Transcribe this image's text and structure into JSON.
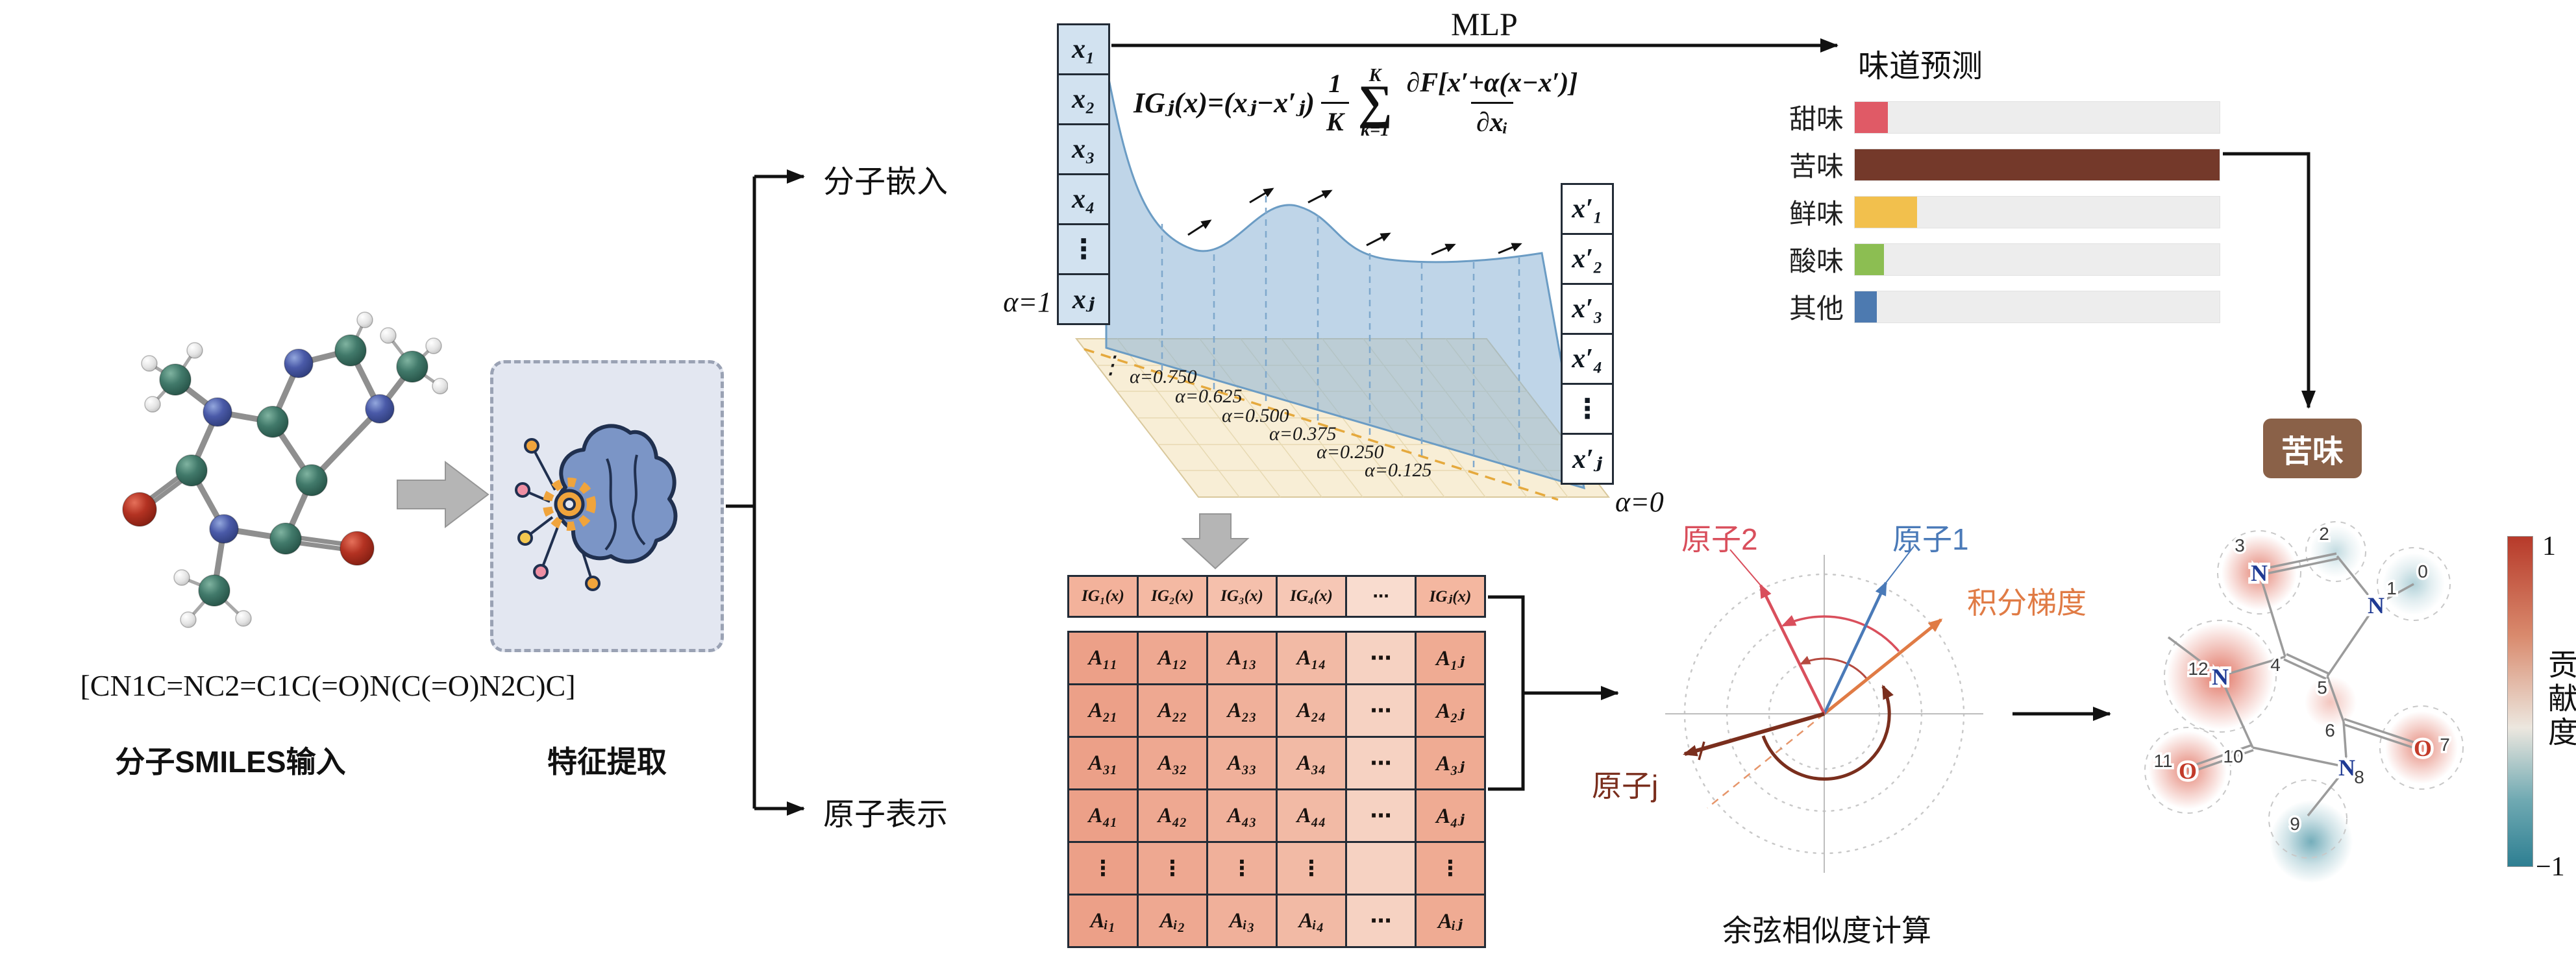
{
  "left": {
    "smiles": "[CN1C=NC2=C1C(=O)N(C(=O)N2C)C]",
    "smiles_label": "分子SMILES输入",
    "feature_label": "特征提取",
    "embed_label": "分子嵌入",
    "atom_repr_label": "原子表示"
  },
  "ig": {
    "mlp_label": "MLP",
    "alpha_start": "α=1",
    "alpha_end": "α=0",
    "vdots": "⋮",
    "x_vector": [
      "x₁",
      "x₂",
      "x₃",
      "x₄",
      "⋮",
      "xⱼ"
    ],
    "x_prime_vector": [
      "x′₁",
      "x′₂",
      "x′₃",
      "x′₄",
      "⋮",
      "x′ⱼ"
    ],
    "alpha_steps": [
      "α=0.750",
      "α=0.625",
      "α=0.500",
      "α=0.375",
      "α=0.250",
      "α=0.125"
    ],
    "formula": {
      "lhs": "IGⱼ(x)=(xⱼ−x′ⱼ)",
      "frac1_num": "1",
      "frac1_den": "K",
      "sum_sup": "K",
      "sigma": "∑",
      "sum_sub": "k=1",
      "frac2_num": "∂F[x′+α(x−x′)]",
      "frac2_den": "∂xᵢ"
    }
  },
  "prediction": {
    "title": "味道预测",
    "bars": [
      {
        "label": "甜味",
        "value_pct": 9,
        "color": "#e05a66"
      },
      {
        "label": "苦味",
        "value_pct": 100,
        "color": "#74392a"
      },
      {
        "label": "鲜味",
        "value_pct": 17,
        "color": "#f2c04d"
      },
      {
        "label": "酸味",
        "value_pct": 8,
        "color": "#8cbe52"
      },
      {
        "label": "其他",
        "value_pct": 6,
        "color": "#4d7ab0"
      }
    ],
    "result_label": "苦味",
    "result_color": "#8a6148"
  },
  "attribution": {
    "ig_row": [
      "IG₁(x)",
      "IG₂(x)",
      "IG₃(x)",
      "IG₄(x)",
      "⋯",
      "IGⱼ(x)"
    ],
    "matrix": [
      [
        "A₁₁",
        "A₁₂",
        "A₁₃",
        "A₁₄",
        "⋯",
        "A₁ⱼ"
      ],
      [
        "A₂₁",
        "A₂₂",
        "A₂₃",
        "A₂₄",
        "⋯",
        "A₂ⱼ"
      ],
      [
        "A₃₁",
        "A₃₂",
        "A₃₃",
        "A₃₄",
        "⋯",
        "A₃ⱼ"
      ],
      [
        "A₄₁",
        "A₄₂",
        "A₄₃",
        "A₄₄",
        "⋯",
        "A₄ⱼ"
      ],
      [
        "⋮",
        "⋮",
        "⋮",
        "⋮",
        "",
        "⋮"
      ],
      [
        "Aᵢ₁",
        "Aᵢ₂",
        "Aᵢ₃",
        "Aᵢ₄",
        "⋯",
        "Aᵢⱼ"
      ]
    ]
  },
  "cosine": {
    "title": "余弦相似度计算",
    "atom1_label": "原子1",
    "atom2_label": "原子2",
    "gradient_label": "积分梯度",
    "atomj_label": "原子j",
    "atom1_color": "#4a7ab8",
    "atom2_color": "#d94f5c",
    "gradient_color": "#e07b45",
    "atomj_color": "#7a2e1d"
  },
  "contribution": {
    "colorbar_label": "贡献度",
    "max_label": "1",
    "min_label": "−1",
    "positive_color": "#b73a2a",
    "negative_color": "#2e7f92",
    "atoms": [
      {
        "num": "0"
      },
      {
        "num": "1",
        "sym": "N"
      },
      {
        "num": "2"
      },
      {
        "num": "3",
        "sym": "N"
      },
      {
        "num": "4"
      },
      {
        "num": "5"
      },
      {
        "num": "6"
      },
      {
        "num": "7",
        "sym": "O"
      },
      {
        "num": "8",
        "sym": "N"
      },
      {
        "num": "9"
      },
      {
        "num": "10"
      },
      {
        "num": "11",
        "sym": "O"
      },
      {
        "num": "12",
        "sym": "N"
      }
    ]
  }
}
